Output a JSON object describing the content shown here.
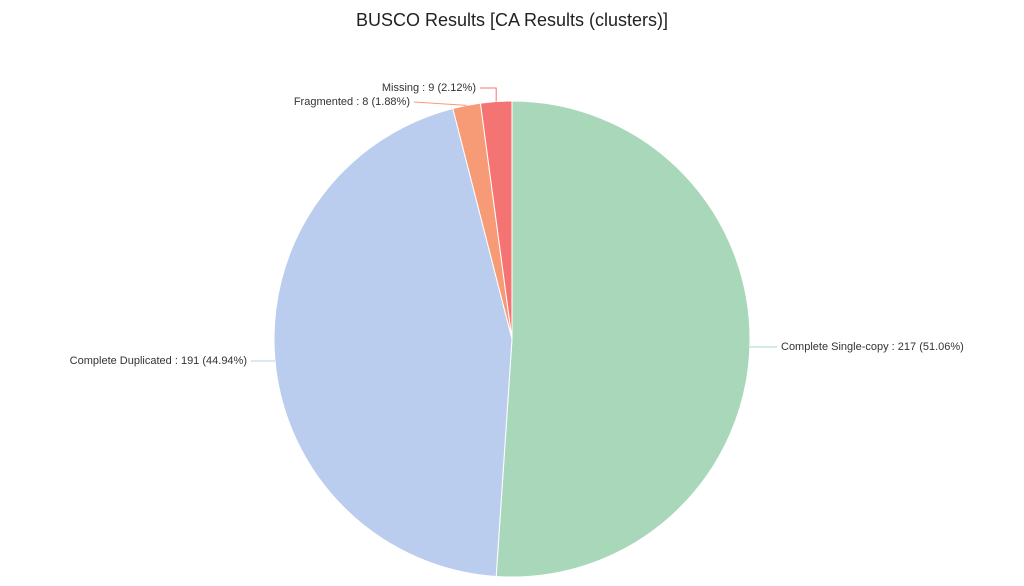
{
  "chart_data": {
    "type": "pie",
    "title": "BUSCO Results [CA Results (clusters)]",
    "values": [
      217,
      191,
      8,
      9
    ],
    "value_labels": [
      "Complete Single-copy : 217 (51.06%)",
      "Complete Duplicated : 191 (44.94%)",
      "Fragmented : 8 (1.88%)",
      "Missing : 9 (2.12%)"
    ],
    "colors": [
      "#a8d8b9",
      "#bacdee",
      "#f79a76",
      "#f47474"
    ]
  }
}
